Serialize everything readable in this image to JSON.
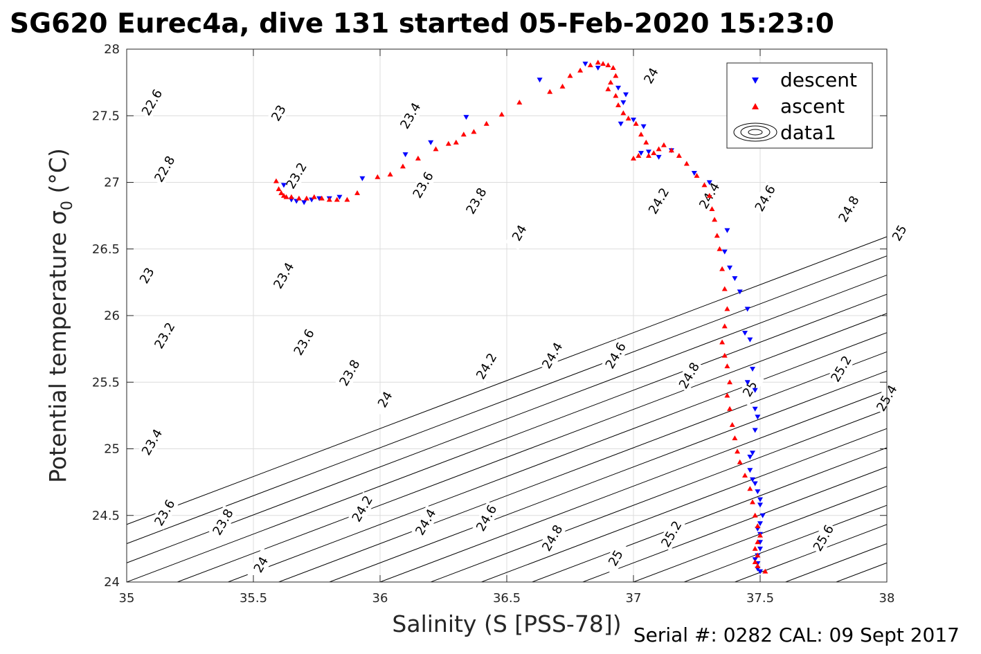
{
  "chart_data": {
    "type": "scatter",
    "title": "SG620 Eurec4a, dive 131 started 05-Feb-2020 15:23:0",
    "xlabel": "Salinity (S [PSS-78])",
    "ylabel_main": "Potential temperature σ",
    "ylabel_sub": "0",
    "ylabel_unit": " (°C)",
    "xlim": [
      35,
      38
    ],
    "ylim": [
      24,
      28
    ],
    "x_ticks": [
      "35",
      "35.5",
      "36",
      "36.5",
      "37",
      "37.5",
      "38"
    ],
    "y_ticks": [
      "24",
      "24.5",
      "25",
      "25.5",
      "26",
      "26.5",
      "27",
      "27.5",
      "28"
    ],
    "grid": true,
    "legend_position": "top-right",
    "legend": [
      "descent",
      "ascent",
      "data1"
    ],
    "colors": {
      "descent": "#0000ff",
      "ascent": "#ff0000",
      "contour": "#000000",
      "grid": "#dcdcdc"
    },
    "footer": "Serial #: 0282  CAL: 09 Sept 2017",
    "contour_labels": [
      {
        "text": "22.6",
        "s": 35.1,
        "t": 27.6
      },
      {
        "text": "22.8",
        "s": 35.15,
        "t": 27.1
      },
      {
        "text": "23",
        "s": 35.08,
        "t": 26.3
      },
      {
        "text": "23.2",
        "s": 35.15,
        "t": 25.85
      },
      {
        "text": "23.4",
        "s": 35.1,
        "t": 25.05
      },
      {
        "text": "23.6",
        "s": 35.15,
        "t": 24.52
      },
      {
        "text": "23.8",
        "s": 35.38,
        "t": 24.45
      },
      {
        "text": "24",
        "s": 35.53,
        "t": 24.13
      },
      {
        "text": "23",
        "s": 35.6,
        "t": 27.52
      },
      {
        "text": "23.2",
        "s": 35.67,
        "t": 27.05
      },
      {
        "text": "23.4",
        "s": 35.62,
        "t": 26.3
      },
      {
        "text": "23.6",
        "s": 35.7,
        "t": 25.8
      },
      {
        "text": "23.8",
        "s": 35.88,
        "t": 25.57
      },
      {
        "text": "24",
        "s": 36.02,
        "t": 25.37
      },
      {
        "text": "23.4",
        "s": 36.12,
        "t": 27.5
      },
      {
        "text": "23.6",
        "s": 36.17,
        "t": 26.98
      },
      {
        "text": "23.8",
        "s": 36.38,
        "t": 26.86
      },
      {
        "text": "24",
        "s": 36.55,
        "t": 26.62
      },
      {
        "text": "24.2",
        "s": 36.42,
        "t": 25.62
      },
      {
        "text": "24.4",
        "s": 36.68,
        "t": 25.7
      },
      {
        "text": "24.6",
        "s": 36.93,
        "t": 25.7
      },
      {
        "text": "24.2",
        "s": 35.93,
        "t": 24.55
      },
      {
        "text": "24.4",
        "s": 36.18,
        "t": 24.45
      },
      {
        "text": "24.6",
        "s": 36.42,
        "t": 24.48
      },
      {
        "text": "24.8",
        "s": 36.68,
        "t": 24.33
      },
      {
        "text": "25",
        "s": 36.93,
        "t": 24.18
      },
      {
        "text": "24.2",
        "s": 37.1,
        "t": 26.86
      },
      {
        "text": "24.4",
        "s": 37.3,
        "t": 26.9
      },
      {
        "text": "24.6",
        "s": 37.52,
        "t": 26.88
      },
      {
        "text": "24",
        "s": 37.07,
        "t": 27.8
      },
      {
        "text": "24.8",
        "s": 37.22,
        "t": 25.55
      },
      {
        "text": "25",
        "s": 37.46,
        "t": 25.45
      },
      {
        "text": "24.8",
        "s": 37.85,
        "t": 26.8
      },
      {
        "text": "25",
        "s": 38.05,
        "t": 26.62
      },
      {
        "text": "25.2",
        "s": 37.15,
        "t": 24.36
      },
      {
        "text": "25.2",
        "s": 37.82,
        "t": 25.6
      },
      {
        "text": "25.4",
        "s": 38.0,
        "t": 25.38
      },
      {
        "text": "25.6",
        "s": 37.75,
        "t": 24.33
      }
    ],
    "descent": {
      "s": [
        35.62,
        35.65,
        35.67,
        35.7,
        35.73,
        35.76,
        35.8,
        35.84,
        35.93,
        36.1,
        36.2,
        36.34,
        36.63,
        36.81,
        36.86,
        36.94,
        36.97,
        36.96,
        36.95,
        37.0,
        37.04,
        37.03,
        37.06,
        37.1,
        37.15,
        37.24,
        37.3,
        37.37,
        37.36,
        37.38,
        37.4,
        37.42,
        37.45,
        37.44,
        37.46,
        37.47,
        37.45,
        37.48,
        37.48,
        37.49,
        37.48,
        37.47,
        37.46,
        37.46,
        37.47,
        37.48,
        37.49,
        37.5,
        37.5,
        37.51,
        37.5,
        37.49,
        37.5,
        37.5,
        37.5,
        37.49,
        37.48,
        37.49,
        37.49,
        37.5
      ],
      "t": [
        26.98,
        26.87,
        26.86,
        26.85,
        26.87,
        26.88,
        26.88,
        26.89,
        27.03,
        27.21,
        27.3,
        27.49,
        27.77,
        27.89,
        27.86,
        27.71,
        27.66,
        27.6,
        27.44,
        27.47,
        27.42,
        27.22,
        27.23,
        27.19,
        27.24,
        27.07,
        27.0,
        26.64,
        26.48,
        26.36,
        26.28,
        26.18,
        26.05,
        25.87,
        25.82,
        25.6,
        25.5,
        25.44,
        25.3,
        25.24,
        25.14,
        24.97,
        24.94,
        24.84,
        24.77,
        24.74,
        24.68,
        24.62,
        24.58,
        24.5,
        24.44,
        24.4,
        24.36,
        24.3,
        24.25,
        24.2,
        24.17,
        24.14,
        24.1,
        24.08
      ]
    },
    "ascent": {
      "s": [
        35.59,
        35.6,
        35.61,
        35.62,
        35.63,
        35.65,
        35.68,
        35.71,
        35.74,
        35.77,
        35.8,
        35.83,
        35.87,
        35.91,
        35.99,
        36.04,
        36.09,
        36.15,
        36.22,
        36.27,
        36.3,
        36.33,
        36.37,
        36.42,
        36.48,
        36.55,
        36.67,
        36.72,
        36.75,
        36.79,
        36.83,
        36.86,
        36.88,
        36.9,
        36.92,
        36.93,
        36.91,
        36.9,
        36.93,
        36.94,
        36.96,
        36.98,
        37.01,
        37.03,
        37.05,
        37.02,
        37.0,
        37.06,
        37.08,
        37.1,
        37.12,
        37.15,
        37.18,
        37.21,
        37.25,
        37.28,
        37.3,
        37.31,
        37.32,
        37.33,
        37.34,
        37.35,
        37.36,
        37.37,
        37.36,
        37.35,
        37.36,
        37.37,
        37.38,
        37.37,
        37.38,
        37.39,
        37.4,
        37.41,
        37.42,
        37.44,
        37.46,
        37.47,
        37.48,
        37.49,
        37.5,
        37.49,
        37.48,
        37.49,
        37.48,
        37.49,
        37.52
      ],
      "t": [
        27.01,
        26.95,
        26.92,
        26.9,
        26.89,
        26.89,
        26.88,
        26.88,
        26.89,
        26.88,
        26.87,
        26.87,
        26.87,
        26.92,
        27.04,
        27.06,
        27.12,
        27.18,
        27.25,
        27.29,
        27.3,
        27.36,
        27.38,
        27.44,
        27.51,
        27.6,
        27.68,
        27.72,
        27.8,
        27.84,
        27.88,
        27.9,
        27.89,
        27.88,
        27.86,
        27.8,
        27.75,
        27.7,
        27.65,
        27.58,
        27.52,
        27.48,
        27.44,
        27.36,
        27.3,
        27.2,
        27.18,
        27.2,
        27.22,
        27.25,
        27.28,
        27.24,
        27.2,
        27.14,
        27.05,
        26.98,
        26.9,
        26.8,
        26.72,
        26.6,
        26.5,
        26.35,
        26.2,
        26.05,
        25.92,
        25.8,
        25.7,
        25.62,
        25.5,
        25.4,
        25.3,
        25.18,
        25.08,
        24.98,
        24.9,
        24.8,
        24.7,
        24.6,
        24.5,
        24.42,
        24.35,
        24.3,
        24.25,
        24.2,
        24.15,
        24.12,
        24.08
      ]
    }
  }
}
